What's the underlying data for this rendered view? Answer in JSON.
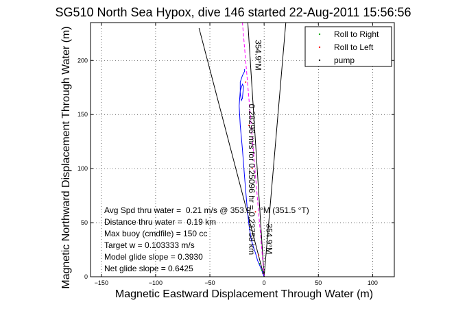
{
  "chart_data": {
    "type": "line",
    "title": "SG510 North Sea Hypox, dive 146 started 22-Aug-2011 15:56:56",
    "xlabel": "Magnetic Eastward Displacement Through Water (m)",
    "ylabel": "Magnetic Northward Displacement Through Water (m)",
    "xlim": [
      -160,
      120
    ],
    "ylim": [
      0,
      235
    ],
    "xticks": [
      "−150",
      "−100",
      "−50",
      "0",
      "50",
      "100"
    ],
    "yticks": [
      "0",
      "50",
      "100",
      "150",
      "200"
    ],
    "grid": true,
    "legend_position": "top-right",
    "legend": [
      {
        "label": "Roll to Right",
        "color": "#00aa00"
      },
      {
        "label": "Roll to Left",
        "color": "#ff0000"
      },
      {
        "label": "pump",
        "color": "#000000"
      }
    ],
    "series": [
      {
        "name": "Roll to Right",
        "color": "#00aa00",
        "x": [
          0,
          -2,
          -4
        ],
        "y": [
          0,
          6,
          12
        ]
      },
      {
        "name": "Roll to Left",
        "color": "#ff0000",
        "x": [
          -5,
          -8,
          -11,
          -14,
          -17
        ],
        "y": [
          20,
          60,
          100,
          140,
          180
        ]
      },
      {
        "name": "pump",
        "color": "#000000",
        "x": [
          0,
          -1
        ],
        "y": [
          0,
          3
        ]
      }
    ],
    "track": {
      "color": "#0000ff",
      "x": [
        0,
        -3,
        -6,
        -8,
        -10,
        -12,
        -14,
        -16,
        -18,
        -20,
        -22,
        -23,
        -22,
        -20,
        -19,
        -20,
        -21,
        -22,
        -22,
        -20,
        -18,
        -18
      ],
      "y": [
        0,
        8,
        15,
        22,
        28,
        35,
        48,
        68,
        92,
        118,
        140,
        158,
        172,
        178,
        176,
        165,
        163,
        170,
        180,
        186,
        190,
        192
      ]
    },
    "dashed_line": {
      "color": "#ff00ff",
      "x": [
        0,
        -20
      ],
      "y": [
        0,
        235
      ]
    },
    "cone_lines": [
      {
        "x": [
          0,
          -60
        ],
        "y": [
          0,
          230
        ]
      },
      {
        "x": [
          0,
          20
        ],
        "y": [
          0,
          235
        ]
      },
      {
        "x": [
          0,
          -15
        ],
        "y": [
          0,
          235
        ]
      }
    ],
    "rotated_labels": [
      {
        "text": "354.9°M",
        "x": -8,
        "y": 205
      },
      {
        "text": "0.28296 m/s for 0.25096 hr = 0.23758 km",
        "x": -14,
        "y": 90
      },
      {
        "text": "354.9°M",
        "x": 2,
        "y": 35
      }
    ],
    "annotations": [
      "Avg Spd thru water =  0.21 m/s @ 353.9    °M (351.5 °T)",
      "Distance thru water =  0.19 km",
      "Max buoy (cmdfile) = 150 cc",
      "Target w = 0.103333 m/s",
      "Model glide slope = 0.3930",
      "Net glide slope = 0.6425"
    ]
  }
}
